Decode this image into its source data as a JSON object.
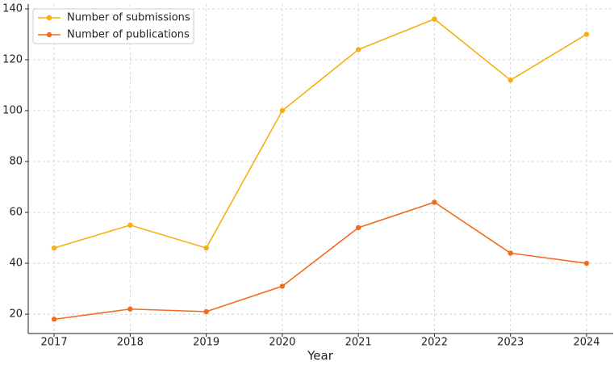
{
  "chart_data": {
    "type": "line",
    "x_label": "Year",
    "x": [
      2017,
      2018,
      2019,
      2020,
      2021,
      2022,
      2023,
      2024
    ],
    "series": [
      {
        "name": "Number of submissions",
        "color": "#f5b00f",
        "values": [
          46,
          55,
          46,
          100,
          124,
          136,
          112,
          130
        ]
      },
      {
        "name": "Number of publications",
        "color": "#f26b21",
        "values": [
          18,
          22,
          21,
          31,
          54,
          64,
          44,
          40
        ]
      }
    ],
    "xlim": [
      2016.66,
      2024.35
    ],
    "xticks": [
      2017,
      2018,
      2019,
      2020,
      2021,
      2022,
      2023,
      2024
    ],
    "ylim": [
      12.4,
      141.9
    ],
    "yticks": [
      20,
      40,
      60,
      80,
      100,
      120,
      140
    ],
    "grid": true,
    "legend": "upper left"
  }
}
